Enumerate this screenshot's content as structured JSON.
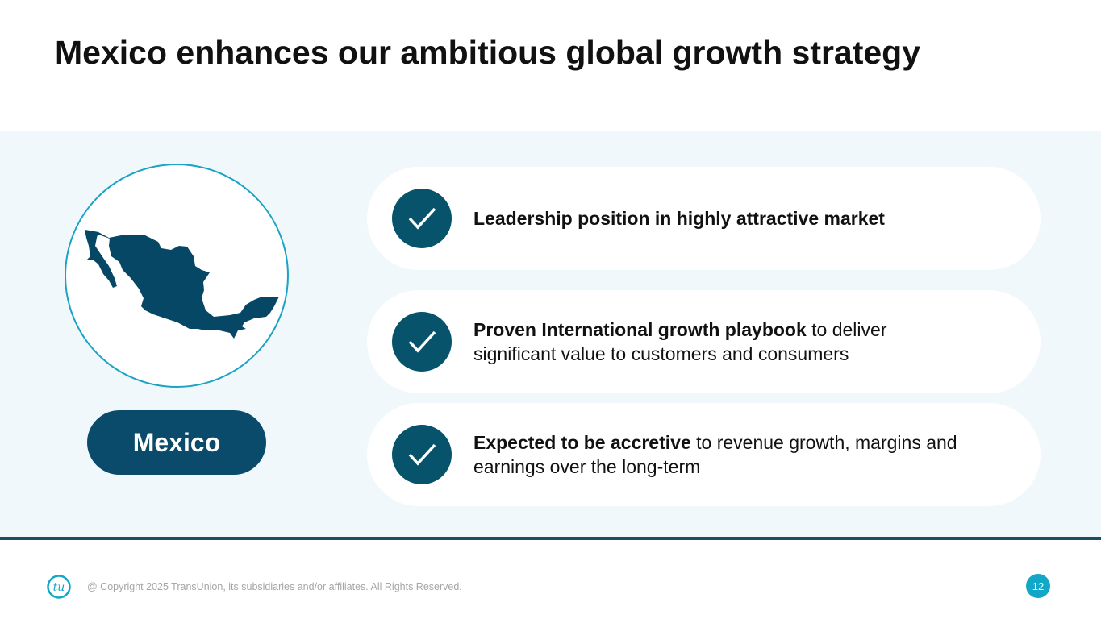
{
  "slide": {
    "title": "Mexico enhances our ambitious global growth strategy",
    "country_label": "Mexico",
    "points": [
      {
        "bold": "Leadership position in highly attractive market",
        "rest": "",
        "icon": "check-icon"
      },
      {
        "bold": "Proven International growth playbook",
        "rest": " to deliver significant value to customers and consumers",
        "icon": "check-icon"
      },
      {
        "bold": "Expected to be accretive",
        "rest": " to revenue growth, margins and earnings over the long-term",
        "icon": "check-icon"
      }
    ]
  },
  "footer": {
    "logo_text": "tu",
    "copyright": "@ Copyright 2025 TransUnion, its subsidiaries and/or affiliates.  All Rights Reserved.",
    "page_number": "12"
  },
  "colors": {
    "accent_dark": "#07536b",
    "accent_cyan": "#12a7c7",
    "band": "#f1f8fb"
  }
}
